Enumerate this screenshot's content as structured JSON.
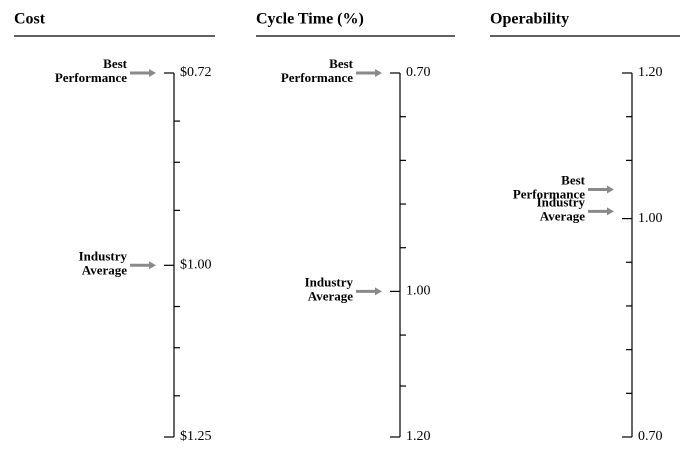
{
  "chart_data": [
    {
      "type": "scale",
      "title": "Cost",
      "ylim": [
        0.72,
        1.25
      ],
      "inverted": true,
      "yticks": [
        {
          "value": 0.72,
          "label": "$0.72"
        },
        {
          "value": 1.0,
          "label": "$1.00"
        },
        {
          "value": 1.25,
          "label": "$1.25"
        }
      ],
      "minor_yticks": [
        0.79,
        0.85,
        0.92,
        1.06,
        1.12,
        1.19
      ],
      "minor_tick_side": "right",
      "annotations": [
        {
          "lines": [
            "Best",
            "Performance"
          ],
          "value": 0.72
        },
        {
          "lines": [
            "Industry",
            "Average"
          ],
          "value": 1.0
        }
      ],
      "arrow_color": "#8a8a8a"
    },
    {
      "type": "scale",
      "title": "Cycle Time  (%)",
      "ylim": [
        0.7,
        1.2
      ],
      "inverted": true,
      "yticks": [
        {
          "value": 0.7,
          "label": "0.70"
        },
        {
          "value": 1.0,
          "label": "1.00"
        },
        {
          "value": 1.2,
          "label": "1.20"
        }
      ],
      "minor_yticks": [
        0.76,
        0.82,
        0.88,
        0.94,
        1.06,
        1.13
      ],
      "minor_tick_side": "right",
      "annotations": [
        {
          "lines": [
            "Best",
            "Performance"
          ],
          "value": 0.7
        },
        {
          "lines": [
            "Industry",
            "Average"
          ],
          "value": 1.0
        }
      ],
      "arrow_color": "#8a8a8a"
    },
    {
      "type": "scale",
      "title": "Operability",
      "ylim": [
        0.7,
        1.2
      ],
      "inverted": false,
      "yticks": [
        {
          "value": 1.2,
          "label": "1.20"
        },
        {
          "value": 1.0,
          "label": "1.00"
        },
        {
          "value": 0.7,
          "label": "0.70"
        }
      ],
      "minor_yticks": [
        1.14,
        1.08,
        0.94,
        0.88,
        0.82,
        0.76
      ],
      "minor_tick_side": "left",
      "annotations": [
        {
          "lines": [
            "Best",
            "Performance"
          ],
          "value": 1.04
        },
        {
          "lines": [
            "Industry",
            "Average"
          ],
          "value": 1.01
        }
      ],
      "arrow_color": "#8a8a8a"
    }
  ]
}
